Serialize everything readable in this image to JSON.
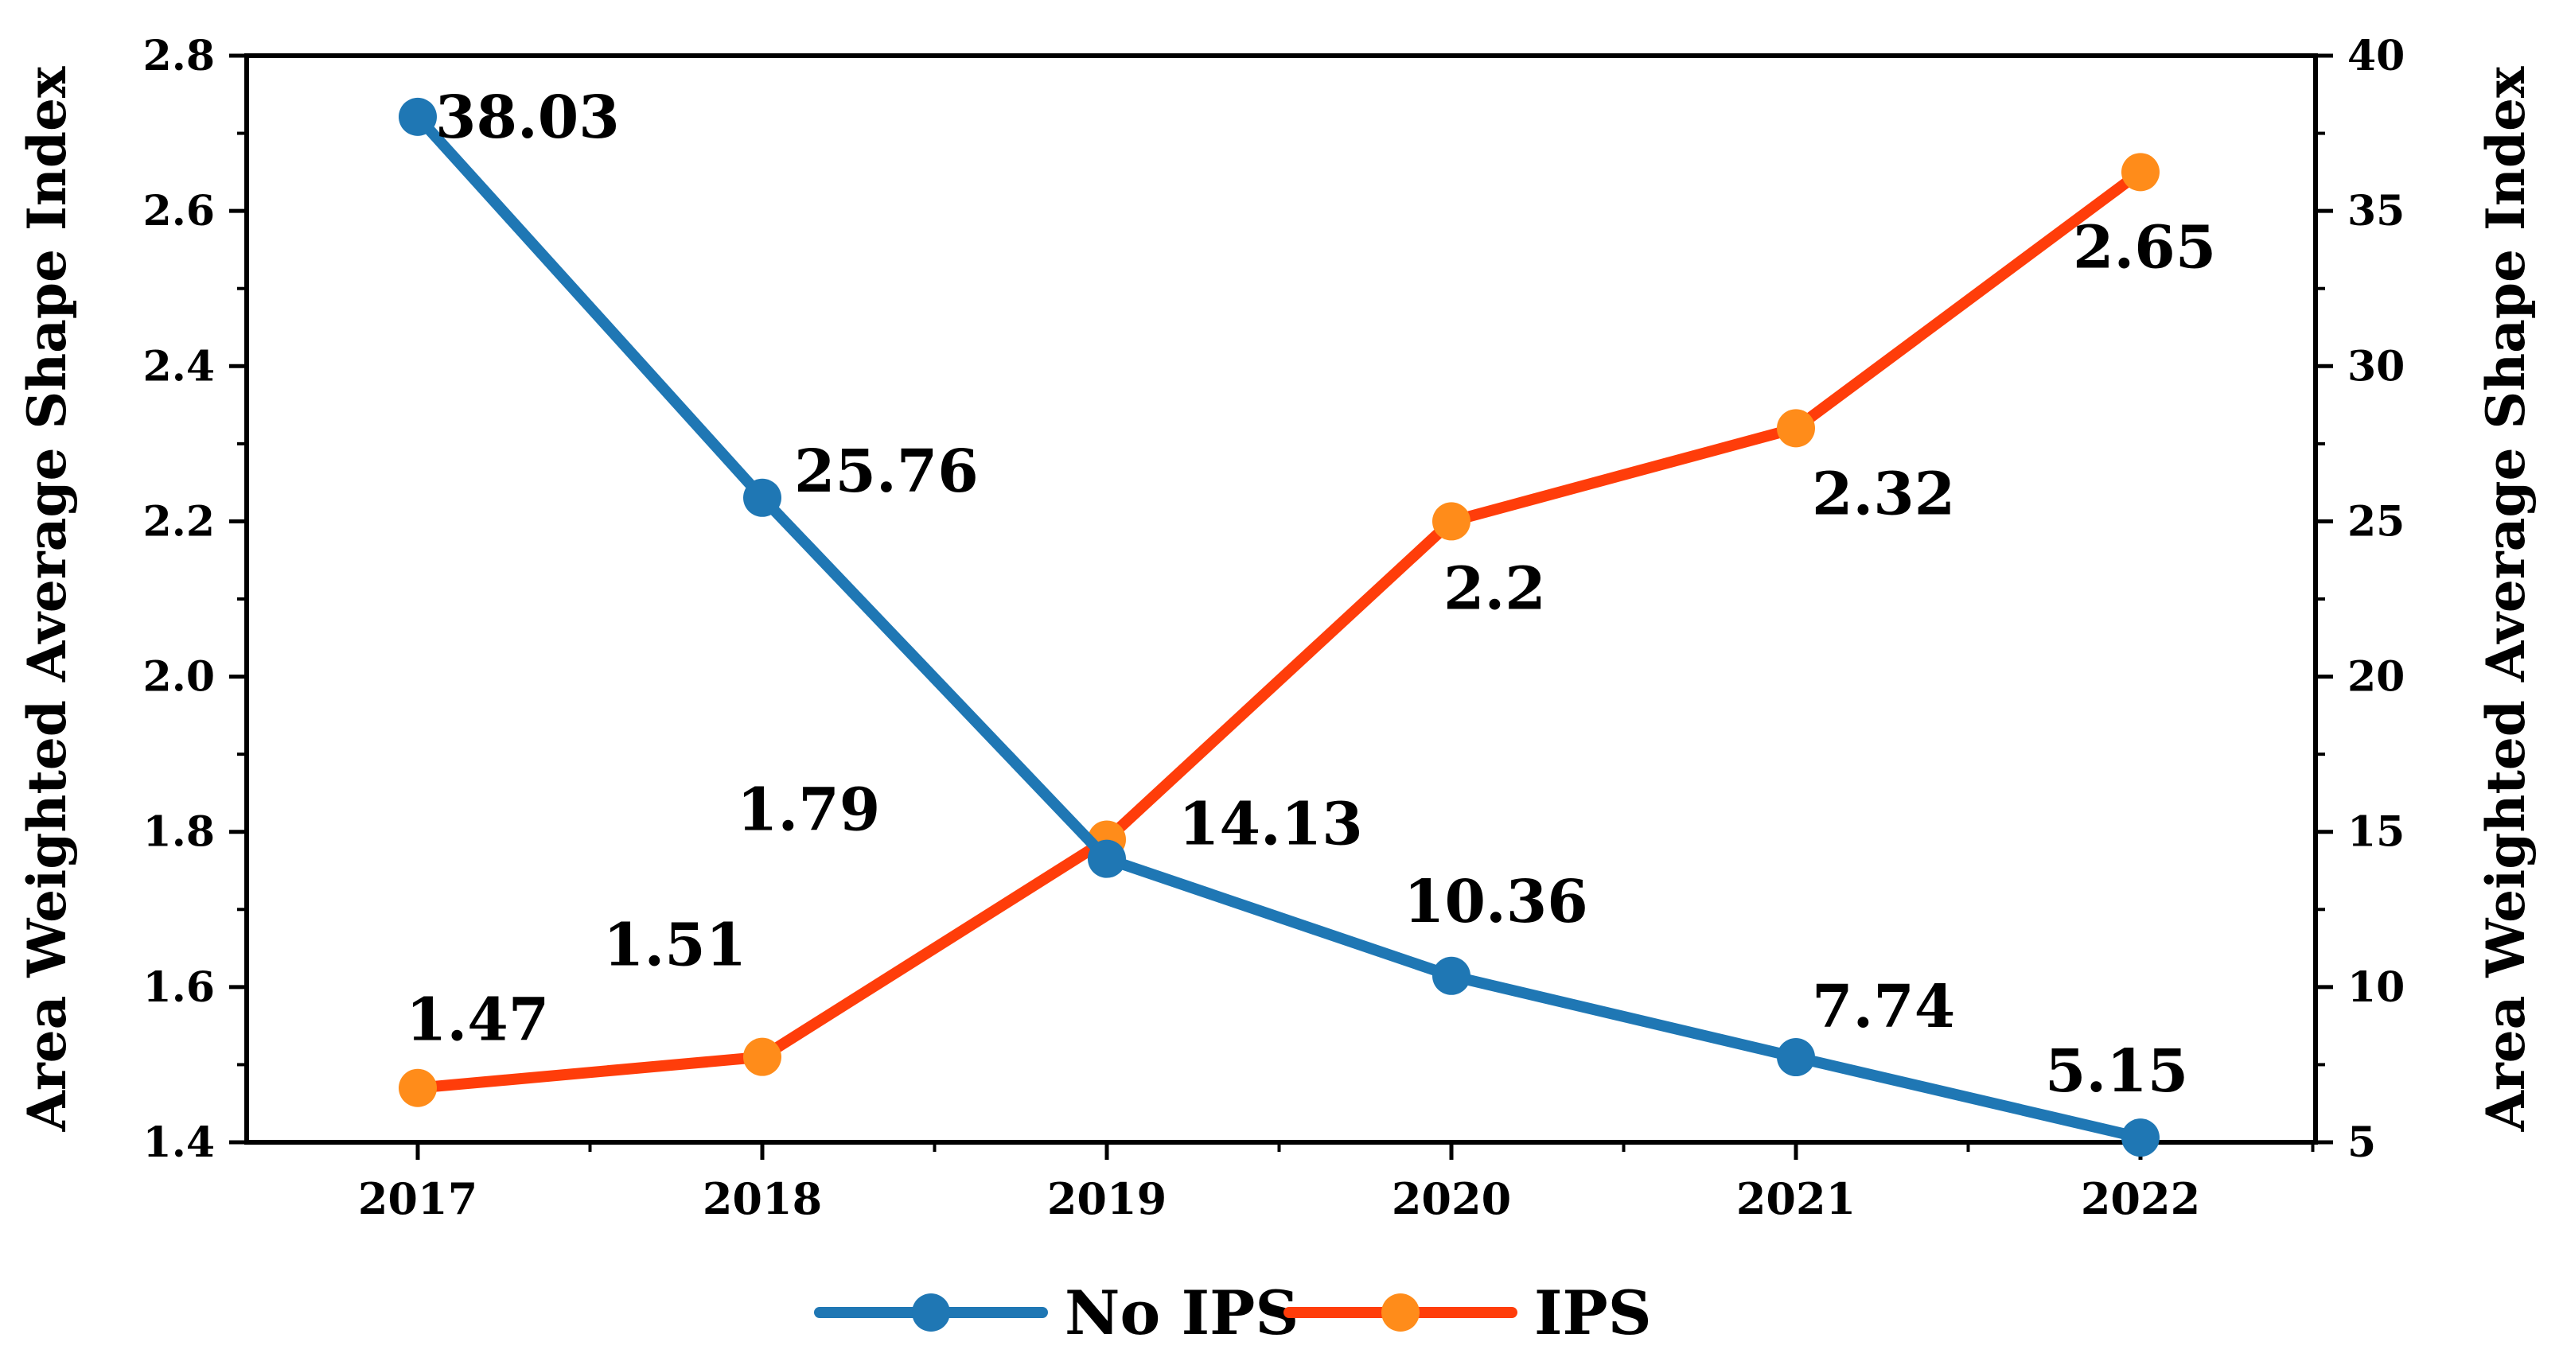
{
  "chart_data": {
    "type": "line",
    "title": "",
    "xlabel": "",
    "categories": [
      "2017",
      "2018",
      "2019",
      "2020",
      "2021",
      "2022"
    ],
    "left_axis": {
      "label": "Area Weighted Average Shape Index",
      "ylim": [
        1.4,
        2.8
      ],
      "ticks": [
        "1.4",
        "1.6",
        "1.8",
        "2.0",
        "2.2",
        "2.4",
        "2.6",
        "2.8"
      ]
    },
    "right_axis": {
      "label": "Area Weighted Average Shape Index",
      "ylim": [
        5,
        40
      ],
      "ticks": [
        "5",
        "10",
        "15",
        "20",
        "25",
        "30",
        "35",
        "40"
      ]
    },
    "series": [
      {
        "name": "No IPS",
        "axis": "right",
        "color": "#1f77b4",
        "values": [
          38.03,
          25.76,
          14.13,
          10.36,
          7.74,
          5.15
        ],
        "labels": [
          "38.03",
          "25.76",
          "14.13",
          "10.36",
          "7.74",
          "5.15"
        ]
      },
      {
        "name": "IPS",
        "axis": "left",
        "color": "#ff3d0a",
        "marker_color": "#ff8c1a",
        "values": [
          1.47,
          1.51,
          1.79,
          2.2,
          2.32,
          2.65
        ],
        "labels": [
          "1.47",
          "1.51",
          "1.79",
          "2.2",
          "2.32",
          "2.65"
        ]
      }
    ],
    "legend": {
      "position": "bottom-center",
      "entries": [
        "No IPS",
        "IPS"
      ]
    }
  }
}
